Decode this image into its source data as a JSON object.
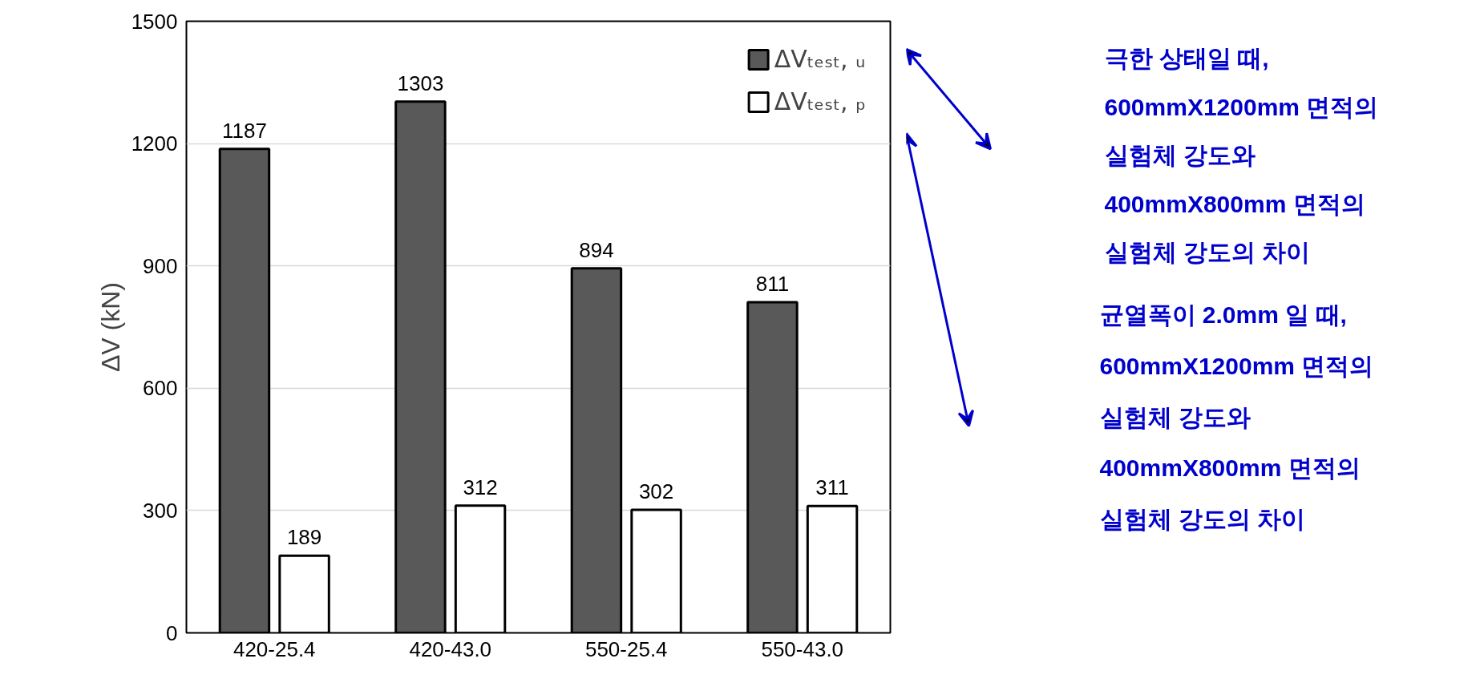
{
  "chart_data": {
    "type": "bar",
    "ylabel": "ΔV (kN)",
    "categories": [
      "420-25.4",
      "420-43.0",
      "550-25.4",
      "550-43.0"
    ],
    "series": [
      {
        "name": "ΔVₜₑₛₜ, ᵤ",
        "color": "#595959",
        "values": [
          1187,
          1303,
          894,
          811
        ]
      },
      {
        "name": "ΔVₜₑₛₜ, ₚ",
        "color": "#ffffff",
        "values": [
          189,
          312,
          302,
          311
        ]
      }
    ],
    "ylim": [
      0,
      1500
    ],
    "yticks": [
      0,
      300,
      600,
      900,
      1200,
      1500
    ],
    "grid": "y",
    "legend": "top right",
    "data_labels": true,
    "annotations": [
      "극한 상태일 때,",
      "600mmX1200mm 면적의",
      "실험체 강도와",
      "400mmX800mm 면적의",
      "실험체 강도의 차이",
      "균열폭이 2.0mm 일 때,",
      "600mmX1200mm 면적의",
      "실험체 강도와",
      "400mmX800mm 면적의",
      "실험체 강도의 차이"
    ]
  }
}
